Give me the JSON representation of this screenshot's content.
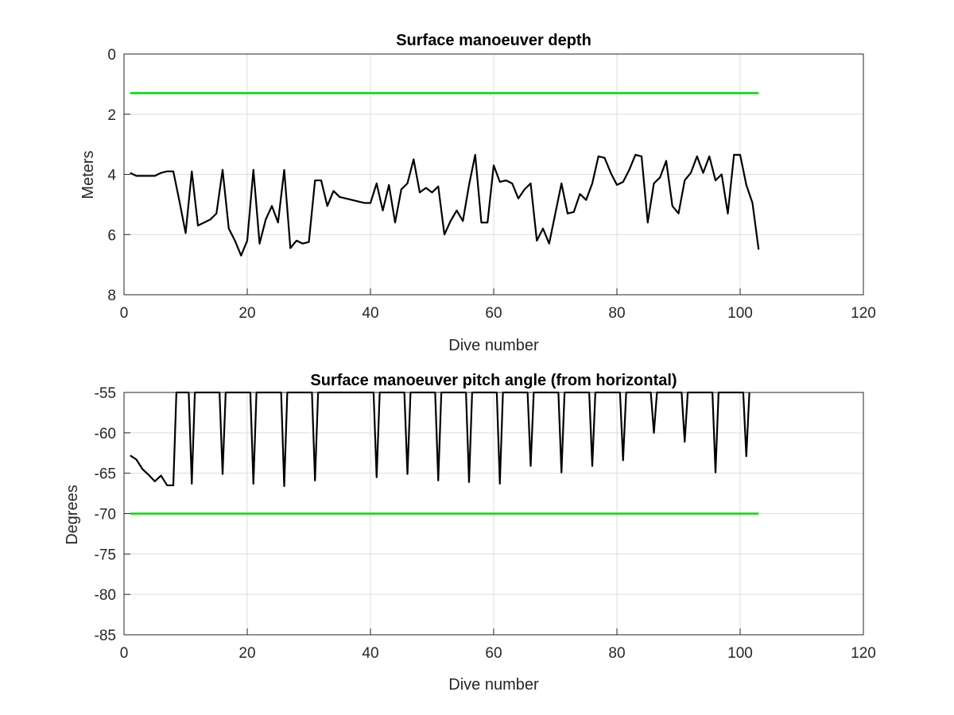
{
  "chart_data": [
    {
      "type": "line",
      "title": "Surface manoeuver depth",
      "xlabel": "Dive number",
      "ylabel": "Meters",
      "xlim": [
        0,
        120
      ],
      "ylim": [
        0,
        8
      ],
      "y_reversed": true,
      "grid": true,
      "xticks": [
        "0",
        "20",
        "40",
        "60",
        "80",
        "100",
        "120"
      ],
      "yticks": [
        "0",
        "2",
        "4",
        "6",
        "8"
      ],
      "colors": {
        "data": "#000000",
        "threshold": "#00dd00"
      },
      "series": [
        {
          "x": [
            1,
            2,
            3,
            4,
            5,
            6,
            7,
            8,
            9,
            10,
            11,
            12,
            13,
            14,
            15,
            16,
            17,
            18,
            19,
            20,
            21,
            22,
            23,
            24,
            25,
            26,
            27,
            28,
            29,
            30,
            31,
            32,
            33,
            34,
            35,
            36,
            37,
            38,
            39,
            40,
            41,
            42,
            43,
            44,
            45,
            46,
            47,
            48,
            49,
            50,
            51,
            52,
            53,
            54,
            55,
            56,
            57,
            58,
            59,
            60,
            61,
            62,
            63,
            64,
            65,
            66,
            67,
            68,
            69,
            70,
            71,
            72,
            73,
            74,
            75,
            76,
            77,
            78,
            79,
            80,
            81,
            82,
            83,
            84,
            85,
            86,
            87,
            88,
            89,
            90,
            91,
            92,
            93,
            94,
            95,
            96,
            97,
            98,
            99,
            100,
            101,
            102,
            103
          ],
          "y": [
            3.95,
            4.05,
            4.05,
            4.05,
            4.05,
            3.95,
            3.9,
            3.9,
            4.9,
            5.95,
            3.9,
            5.7,
            5.6,
            5.5,
            5.3,
            3.85,
            5.8,
            6.2,
            6.7,
            6.2,
            3.85,
            6.3,
            5.5,
            5.05,
            5.6,
            3.85,
            6.45,
            6.2,
            6.3,
            6.25,
            4.2,
            4.2,
            5.05,
            4.55,
            4.75,
            4.8,
            4.85,
            4.9,
            4.95,
            4.95,
            4.3,
            5.2,
            4.35,
            5.6,
            4.5,
            4.3,
            3.5,
            4.6,
            4.45,
            4.6,
            4.4,
            6.0,
            5.55,
            5.2,
            5.55,
            4.35,
            3.35,
            5.6,
            5.6,
            3.7,
            4.25,
            4.2,
            4.3,
            4.8,
            4.5,
            4.3,
            6.2,
            5.8,
            6.3,
            5.3,
            4.3,
            5.3,
            5.25,
            4.65,
            4.85,
            4.3,
            3.4,
            3.45,
            3.95,
            4.35,
            4.25,
            3.85,
            3.35,
            3.4,
            5.6,
            4.3,
            4.1,
            3.55,
            5.05,
            5.3,
            4.2,
            3.95,
            3.4,
            3.95,
            3.4,
            4.2,
            4.0,
            5.3,
            3.35,
            3.35,
            4.35,
            4.95,
            6.5
          ]
        },
        {
          "x": [
            1,
            103
          ],
          "y": [
            1.3,
            1.3
          ]
        }
      ]
    },
    {
      "type": "line",
      "title": "Surface manoeuver pitch angle (from horizontal)",
      "xlabel": "Dive number",
      "ylabel": "Degrees",
      "xlim": [
        0,
        120
      ],
      "ylim": [
        -85,
        -55
      ],
      "grid": true,
      "xticks": [
        "0",
        "20",
        "40",
        "60",
        "80",
        "100",
        "120"
      ],
      "yticks": [
        "-55",
        "-60",
        "-65",
        "-70",
        "-75",
        "-80",
        "-85"
      ],
      "colors": {
        "data": "#000000",
        "threshold": "#00dd00"
      },
      "series": [
        {
          "x": [
            1,
            2,
            3,
            4,
            5,
            6,
            7,
            8,
            8.5,
            9,
            10.5,
            11,
            11.5,
            15.5,
            16,
            16.5,
            20.5,
            21,
            21.5,
            25.5,
            26,
            26.5,
            30.5,
            31,
            31.5,
            40.5,
            41,
            41.5,
            45.5,
            46,
            46.5,
            50.5,
            51,
            51.5,
            55.5,
            56,
            56.5,
            60.5,
            61,
            61.5,
            65.5,
            66,
            66.5,
            70.5,
            71,
            71.5,
            75.5,
            76,
            76.5,
            80.5,
            81,
            81.5,
            85.5,
            86,
            86.5,
            90.5,
            91,
            91.5,
            95.5,
            96,
            96.5,
            100.5,
            101,
            101.5
          ],
          "y": [
            -62.8,
            -63.3,
            -64.5,
            -65.2,
            -66.0,
            -65.3,
            -66.5,
            -66.5,
            -55,
            -55,
            -55,
            -66.3,
            -55,
            -55,
            -65.1,
            -55,
            -55,
            -66.3,
            -55,
            -55,
            -66.6,
            -55,
            -55,
            -65.9,
            -55,
            -55,
            -65.5,
            -55,
            -55,
            -65.1,
            -55,
            -55,
            -65.9,
            -55,
            -55,
            -66.1,
            -55,
            -55,
            -66.3,
            -55,
            -55,
            -64.1,
            -55,
            -55,
            -64.9,
            -55,
            -55,
            -64.1,
            -55,
            -55,
            -63.4,
            -55,
            -55,
            -60.0,
            -55,
            -55,
            -61.1,
            -55,
            -55,
            -64.9,
            -55,
            -55,
            -62.9,
            -55
          ]
        },
        {
          "x": [
            1,
            103
          ],
          "y": [
            -70,
            -70
          ]
        }
      ]
    }
  ]
}
